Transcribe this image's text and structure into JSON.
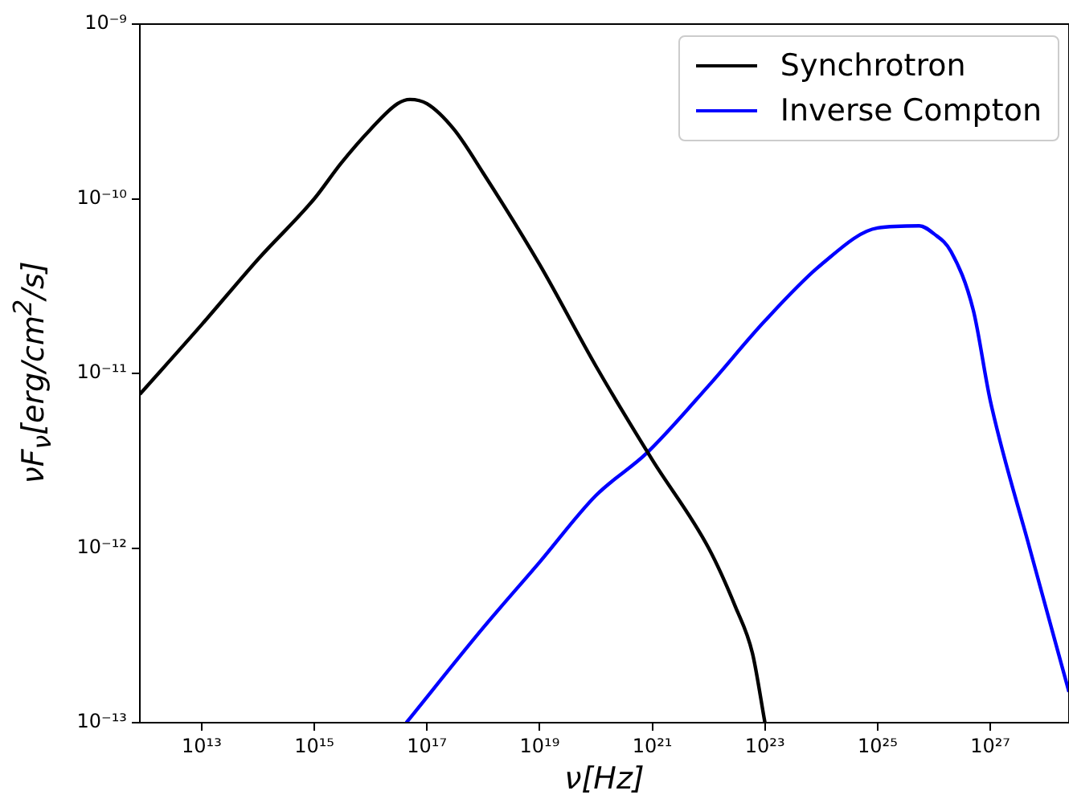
{
  "chart_data": {
    "type": "line",
    "xlabel": "ν[Hz]",
    "ylabel": "νF$_{ν}$[erg/cm$^{2}$/s]",
    "log": "xy",
    "grid": false,
    "legend": "top right",
    "marker": "none",
    "line_style": "solid",
    "xlim": [
      800000000000.0,
      2.5e+28
    ],
    "xticks": [
      {
        "value": 10000000000000.0,
        "label": "10¹³"
      },
      {
        "value": 1000000000000000.0,
        "label": "10¹⁵"
      },
      {
        "value": 1e+17,
        "label": "10¹⁷"
      },
      {
        "value": 1e+19,
        "label": "10¹⁹"
      },
      {
        "value": 1e+21,
        "label": "10²¹"
      },
      {
        "value": 1e+23,
        "label": "10²³"
      },
      {
        "value": 1e+25,
        "label": "10²⁵"
      },
      {
        "value": 1e+27,
        "label": "10²⁷"
      }
    ],
    "ylim": [
      1e-13,
      1e-09
    ],
    "yticks": [
      {
        "value": 1e-13,
        "label": "10⁻¹³"
      },
      {
        "value": 1e-12,
        "label": "10⁻¹²"
      },
      {
        "value": 1e-11,
        "label": "10⁻¹¹"
      },
      {
        "value": 1e-10,
        "label": "10⁻¹⁰"
      },
      {
        "value": 1e-09,
        "label": "10⁻⁹"
      }
    ],
    "series": [
      {
        "name": "Synchrotron",
        "color": "#000000",
        "x": [
          800000000000.0,
          10000000000000.0,
          100000000000000.0,
          1000000000000000.0,
          3000000000000000.0,
          1e+16,
          3e+16,
          5e+16,
          1e+17,
          3e+17,
          1e+18,
          1e+19,
          1e+20,
          1e+21,
          1e+22,
          3e+22,
          6e+22,
          1e+23
        ],
        "values": [
          7.6e-12,
          1.9e-11,
          4.5e-11,
          1e-10,
          1.6e-10,
          2.5e-10,
          3.5e-10,
          3.7e-10,
          3.5e-10,
          2.5e-10,
          1.4e-10,
          4.2e-11,
          1.1e-11,
          3.2e-12,
          1e-12,
          4.6e-13,
          2.5e-13,
          1e-13
        ]
      },
      {
        "name": "Inverse Compton",
        "color": "#0000ff",
        "x": [
          4.3e+16,
          1e+18,
          1e+19,
          1e+20,
          8e+20,
          1e+22,
          1e+23,
          1e+24,
          1e+25,
          5.5e+25,
          1e+26,
          2e+26,
          5e+26,
          1e+27,
          5e+27,
          2.5e+28
        ],
        "values": [
          1e-13,
          3.5e-13,
          8.3e-13,
          2e-12,
          3.5e-12,
          8.5e-12,
          2e-11,
          4.2e-11,
          6.8e-11,
          7e-11,
          6.3e-11,
          5e-11,
          2.3e-11,
          7e-12,
          1e-12,
          1.5e-13
        ]
      }
    ]
  }
}
